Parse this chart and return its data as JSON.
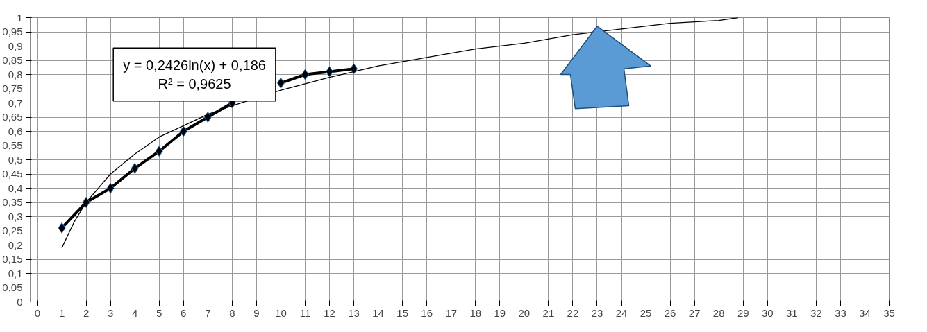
{
  "chart_data": {
    "type": "line",
    "x": [
      1,
      2,
      3,
      4,
      5,
      6,
      7,
      8,
      9,
      10,
      11,
      12,
      13
    ],
    "series": [
      {
        "color": "#000000",
        "values": [
          0.26,
          0.35,
          0.4,
          0.47,
          0.53,
          0.6,
          0.65,
          0.7,
          null,
          0.77,
          0.8,
          0.81,
          0.82
        ],
        "marker": "diamond"
      },
      {
        "color": "#000000",
        "type": "line",
        "marker": "none",
        "x": [
          1,
          1.5,
          2,
          3,
          4,
          5,
          6,
          7,
          8,
          10,
          12,
          14,
          16,
          18,
          20,
          22,
          24,
          26,
          28,
          28.8
        ],
        "values": [
          0.19,
          0.28,
          0.35,
          0.45,
          0.52,
          0.58,
          0.62,
          0.66,
          0.69,
          0.745,
          0.79,
          0.83,
          0.86,
          0.89,
          0.91,
          0.94,
          0.96,
          0.98,
          0.99,
          1.0
        ]
      }
    ],
    "xlim": [
      -0.3,
      35
    ],
    "xticks": [
      0,
      1,
      2,
      3,
      4,
      5,
      6,
      7,
      8,
      9,
      10,
      11,
      12,
      13,
      14,
      15,
      16,
      17,
      18,
      19,
      20,
      21,
      22,
      23,
      24,
      25,
      26,
      27,
      28,
      29,
      30,
      31,
      32,
      33,
      34,
      35
    ],
    "ylim": [
      0,
      1
    ],
    "yticks": [
      0,
      {
        "value": 0.05,
        "label": "0,05"
      },
      {
        "value": 0.1,
        "label": "0,1"
      },
      {
        "value": 0.15,
        "label": "0,15"
      },
      {
        "value": 0.2,
        "label": "0,2"
      },
      {
        "value": 0.25,
        "label": "0,25"
      },
      {
        "value": 0.3,
        "label": "0,3"
      },
      {
        "value": 0.35,
        "label": "0,35"
      },
      {
        "value": 0.4,
        "label": "0,4"
      },
      {
        "value": 0.45,
        "label": "0,45"
      },
      {
        "value": 0.5,
        "label": "0,5"
      },
      {
        "value": 0.55,
        "label": "0,55"
      },
      {
        "value": 0.6,
        "label": "0,6"
      },
      {
        "value": 0.65,
        "label": "0,65"
      },
      {
        "value": 0.7,
        "label": "0,7"
      },
      {
        "value": 0.75,
        "label": "0,75"
      },
      {
        "value": 0.8,
        "label": "0,8"
      },
      {
        "value": 0.85,
        "label": "0,85"
      },
      {
        "value": 0.9,
        "label": "0,9"
      },
      {
        "value": 0.95,
        "label": "0,95"
      },
      1
    ],
    "grid": true,
    "line_style": "solid",
    "annotations": [
      "y = 0,2426ln(x) + 0,186",
      "R² = 0,9625"
    ]
  }
}
